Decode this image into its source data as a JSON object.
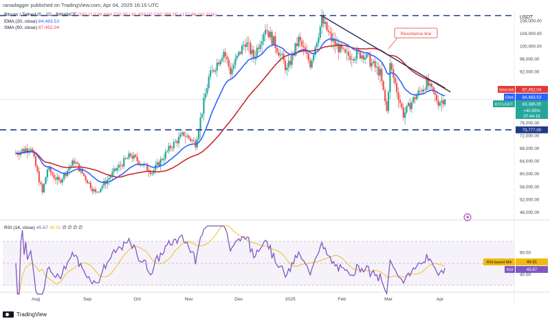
{
  "header": {
    "publisher_line": "ranadagger published on TradingView.com, Apr 04, 2025 16:15 UTC",
    "symbol_line": "Bitcoin / TetherUS · 1D · BINANCE",
    "ohlc": "O83,213.09 H84,720.00 L81,659.00 C83,386.05 +172.96 (+0.21%)",
    "ema_label": "EMA (20, close)",
    "ema_value": "84,483.53",
    "sma_label": "SMA (50, close)",
    "sma_value": "87,452.04"
  },
  "rsi_legend": {
    "label": "RSI (14, close)",
    "value": "45.67",
    "ma_value": "46.91",
    "extras": "∅ ∅ ∅ ∅"
  },
  "footer": {
    "brand": "TradingView"
  },
  "colors": {
    "up": "#26a69a",
    "down": "#ef5350",
    "ema": "#2962ff",
    "sma": "#c62828",
    "rsi": "#7e57c2",
    "rsi_ma": "#f0b90b",
    "level_line": "#1e3a8a",
    "trend_line": "#1e2a55"
  },
  "chart_data": [
    {
      "type": "candlestick",
      "title": "Bitcoin / TetherUS · 1D · BINANCE",
      "currency": "USDT",
      "y_ticks": [
        48000,
        52000,
        56000,
        60000,
        64000,
        68000,
        72000,
        76000,
        92000,
        96000,
        100000,
        104000,
        108000
      ],
      "y_tick_labels": [
        "48,000.00",
        "52,000.00",
        "56,000.00",
        "60,000.00",
        "64,000.00",
        "68,000.00",
        "72,000.00",
        "76,000.00",
        "92,000.00",
        "96,000.00",
        "100,000.00",
        "104,000.00",
        "108,000.00"
      ],
      "x_tick_labels": [
        "Aug",
        "Sep",
        "Oct",
        "Nov",
        "Dec",
        "2025",
        "Feb",
        "Mar",
        "Apr"
      ],
      "close_path": [
        [
          "2024-07-20",
          66500
        ],
        [
          "2024-07-29",
          68500
        ],
        [
          "2024-08-05",
          54000
        ],
        [
          "2024-08-08",
          61500
        ],
        [
          "2024-08-15",
          57500
        ],
        [
          "2024-08-24",
          64000
        ],
        [
          "2024-09-06",
          53900
        ],
        [
          "2024-09-19",
          61800
        ],
        [
          "2024-09-27",
          65800
        ],
        [
          "2024-10-10",
          60500
        ],
        [
          "2024-10-21",
          68400
        ],
        [
          "2024-10-29",
          72500
        ],
        [
          "2024-11-05",
          69500
        ],
        [
          "2024-11-13",
          90000
        ],
        [
          "2024-11-22",
          98500
        ],
        [
          "2024-11-26",
          92000
        ],
        [
          "2024-12-05",
          101500
        ],
        [
          "2024-12-10",
          96500
        ],
        [
          "2024-12-17",
          106000
        ],
        [
          "2024-12-25",
          98500
        ],
        [
          "2024-12-30",
          92500
        ],
        [
          "2025-01-06",
          102000
        ],
        [
          "2025-01-13",
          94500
        ],
        [
          "2025-01-20",
          108000
        ],
        [
          "2025-01-26",
          102000
        ],
        [
          "2025-02-03",
          97000
        ],
        [
          "2025-02-14",
          97500
        ],
        [
          "2025-02-24",
          91500
        ],
        [
          "2025-02-28",
          79500
        ],
        [
          "2025-03-02",
          94000
        ],
        [
          "2025-03-10",
          78500
        ],
        [
          "2025-03-17",
          84000
        ],
        [
          "2025-03-24",
          88500
        ],
        [
          "2025-03-31",
          82500
        ],
        [
          "2025-04-04",
          83386
        ]
      ],
      "ema20": {
        "label": "EMA",
        "value": 84483.53
      },
      "sma50": {
        "label": "SMA",
        "value": 87452.04
      },
      "horizontal_levels": [
        {
          "value": 109588,
          "style": "dashed"
        },
        {
          "value": 73777,
          "label": "73,777.00",
          "style": "dashed"
        }
      ],
      "trendline": {
        "label": "Resistance line",
        "from": [
          "2025-01-20",
          109500
        ],
        "to": [
          "2025-04-04",
          85000
        ]
      },
      "price_tags": [
        {
          "label": "SMA:MA",
          "value": "87,452.04"
        },
        {
          "label": "EMA",
          "value": "84,483.53"
        },
        {
          "label": "BTCUSDT",
          "value": "83,386.05"
        },
        {
          "label": "change",
          "value": "+40.85%"
        },
        {
          "label": "countdown",
          "value": "07:44:15"
        }
      ]
    },
    {
      "type": "line",
      "title": "RSI (14, close)",
      "y_ticks": [
        40,
        60
      ],
      "y_tick_labels": [
        "40.00",
        "60.00"
      ],
      "bands": [
        30,
        70
      ],
      "series": [
        {
          "name": "RSI",
          "value": 45.67
        },
        {
          "name": "RSI-based MA",
          "value": 46.91
        }
      ]
    }
  ]
}
